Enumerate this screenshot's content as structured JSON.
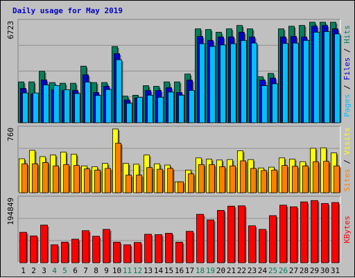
{
  "chart_data": {
    "type": "bar",
    "title": "Daily usage for May 2019",
    "categories": [
      "1",
      "2",
      "3",
      "4",
      "5",
      "6",
      "7",
      "8",
      "9",
      "10",
      "11",
      "12",
      "13",
      "14",
      "15",
      "16",
      "17",
      "18",
      "19",
      "20",
      "21",
      "22",
      "23",
      "24",
      "25",
      "26",
      "27",
      "28",
      "29",
      "30",
      "31"
    ],
    "weekend_days": [
      "4",
      "5",
      "11",
      "12",
      "18",
      "19",
      "25",
      "26"
    ],
    "colors": {
      "hits": "#00805c",
      "files": "#0000d0",
      "pages": "#00c0ff",
      "visits": "#ffff00",
      "sites": "#ff8000",
      "kbytes": "#ff0000",
      "weekday_label": "#000000",
      "weekend_label": "#00805c"
    },
    "panels": [
      {
        "name": "usage",
        "ymax": 6723,
        "ylabel_top": "6723",
        "legend": [
          {
            "text": "Pages",
            "color": "#00c0ff"
          },
          {
            "text": " / ",
            "color": "#000000"
          },
          {
            "text": "Files",
            "color": "#0000d0"
          },
          {
            "text": " / ",
            "color": "#000000"
          },
          {
            "text": "Hits",
            "color": "#00805c"
          }
        ],
        "series": [
          {
            "name": "Hits",
            "values": [
              2730,
              2730,
              3445,
              2685,
              2640,
              2640,
              3785,
              2685,
              2686,
              5098,
              1780,
              1838,
              2478,
              2433,
              2730,
              2730,
              3255,
              6278,
              6233,
              6050,
              6278,
              6505,
              6278,
              3075,
              3300,
              6278,
              6455,
              6507,
              6723,
              6723,
              6723
            ]
          },
          {
            "name": "Files",
            "values": [
              2300,
              1930,
              2866,
              2210,
              2163,
              2163,
              3205,
              2023,
              2440,
              4620,
              1520,
              1653,
              2163,
              2163,
              2347,
              2023,
              2850,
              5780,
              5505,
              5735,
              5735,
              6050,
              5735,
              2850,
              2985,
              5735,
              5780,
              5735,
              6460,
              6505,
              6278
            ]
          },
          {
            "name": "Pages",
            "values": [
              1990,
              1990,
              2530,
              2485,
              2210,
              1950,
              2720,
              1820,
              2220,
              4210,
              1300,
              1700,
              1840,
              1700,
              2050,
              1840,
              2160,
              5280,
              5100,
              5200,
              5280,
              5500,
              5325,
              2480,
              2605,
              5300,
              5325,
              5500,
              6050,
              6095,
              5940
            ]
          }
        ]
      },
      {
        "name": "visitors",
        "ymax": 760,
        "ylabel_top": "760",
        "legend": [
          {
            "text": "Sites",
            "color": "#ff8000"
          },
          {
            "text": " / ",
            "color": "#000000"
          },
          {
            "text": "Visits",
            "color": "#ffff00"
          }
        ],
        "series": [
          {
            "name": "Visits",
            "values": [
              405,
              505,
              430,
              450,
              485,
              460,
              320,
              310,
              350,
              760,
              350,
              340,
              450,
              345,
              330,
              130,
              270,
              415,
              400,
              390,
              395,
              500,
              395,
              295,
              305,
              415,
              400,
              370,
              530,
              535,
              475
            ]
          },
          {
            "name": "Sites",
            "values": [
              345,
              345,
              360,
              320,
              335,
              325,
              285,
              270,
              290,
              590,
              210,
              210,
              300,
              280,
              290,
              130,
              225,
              335,
              335,
              310,
              320,
              380,
              290,
              265,
              270,
              325,
              315,
              320,
              370,
              375,
              320
            ]
          }
        ]
      },
      {
        "name": "traffic",
        "ymax": 194849,
        "ylabel_top": "194849",
        "legend": [
          {
            "text": "KBytes",
            "color": "#ff0000"
          }
        ],
        "series": [
          {
            "name": "KBytes",
            "values": [
              93000,
              82000,
              115000,
              55000,
              63000,
              72000,
              98000,
              81000,
              102000,
              63000,
              55000,
              62000,
              87000,
              86000,
              90000,
              63000,
              96000,
              148000,
              131000,
              160000,
              173000,
              174000,
              113000,
              102000,
              144000,
              176000,
              171000,
              186000,
              190000,
              181000,
              184000
            ]
          }
        ]
      }
    ]
  }
}
